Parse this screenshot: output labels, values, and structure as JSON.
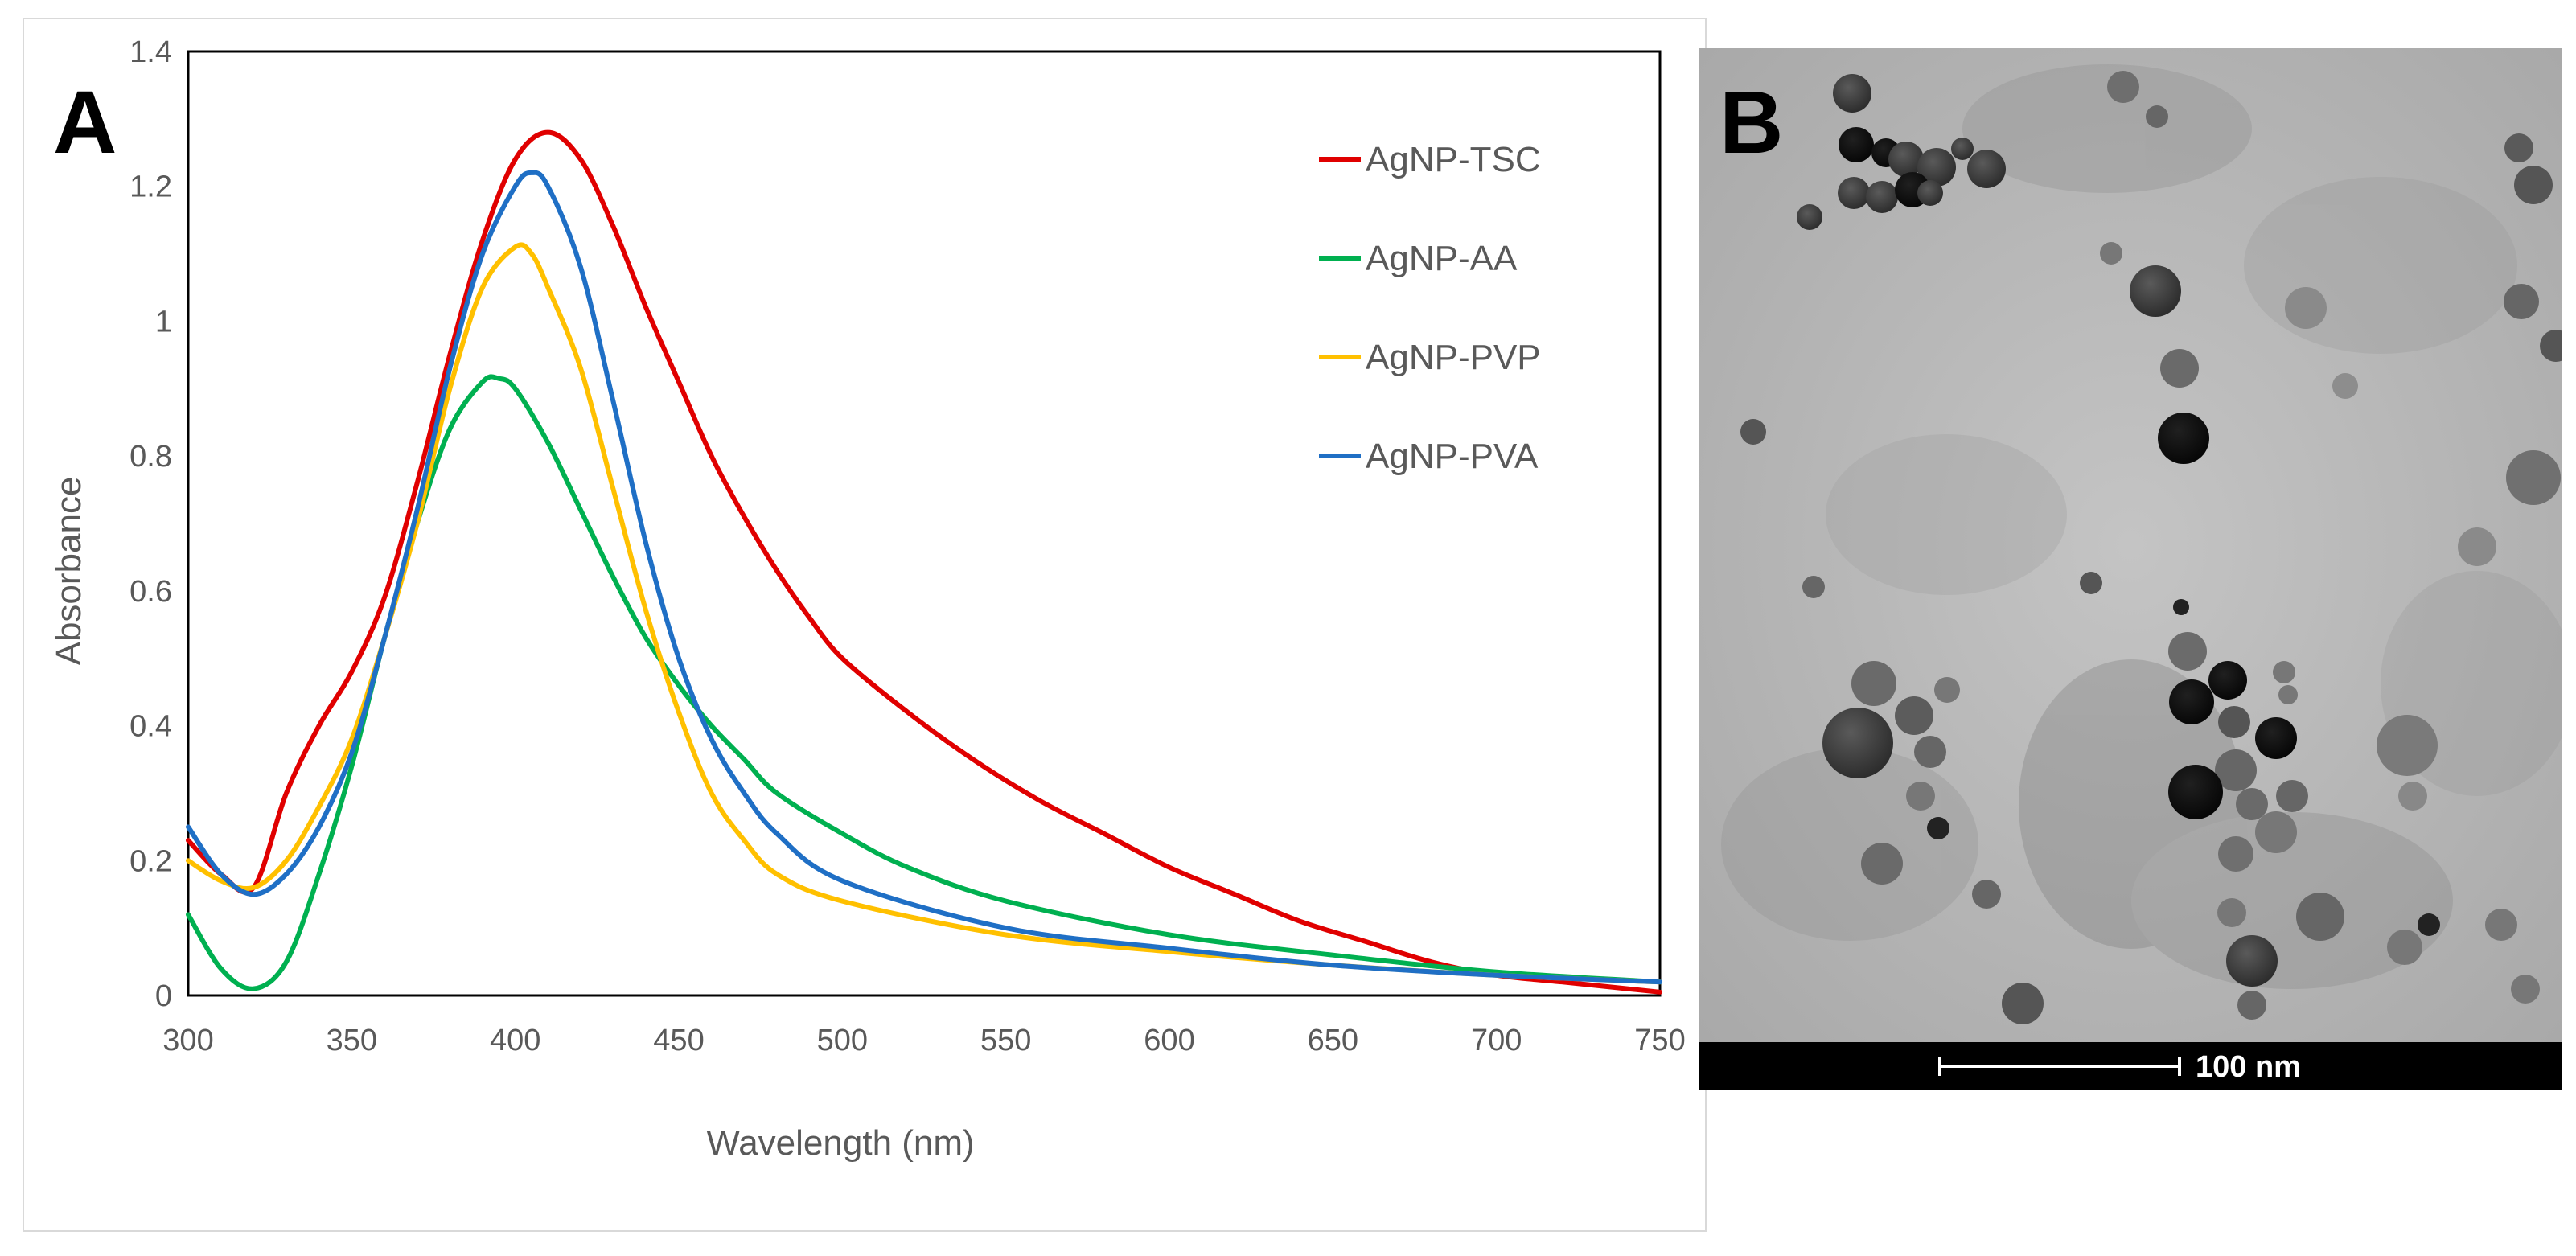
{
  "chart_data": {
    "type": "line",
    "panel_label": "A",
    "xlabel": "Wavelength (nm)",
    "ylabel": "Absorbance",
    "xlim": [
      300,
      750
    ],
    "ylim": [
      0,
      1.4
    ],
    "x_ticks": [
      300,
      350,
      400,
      450,
      500,
      550,
      600,
      650,
      700,
      750
    ],
    "y_ticks": [
      "0",
      "0.2",
      "0.4",
      "0.6",
      "0.8",
      "1",
      "1.2",
      "1.4"
    ],
    "y_tick_values": [
      0,
      0.2,
      0.4,
      0.6,
      0.8,
      1.0,
      1.2,
      1.4
    ],
    "legend_position": "top-right",
    "series": [
      {
        "name": "AgNP-TSC",
        "color": "#e00000",
        "x": [
          300,
          310,
          320,
          330,
          340,
          350,
          360,
          370,
          380,
          390,
          400,
          410,
          420,
          430,
          440,
          450,
          460,
          470,
          480,
          490,
          500,
          520,
          540,
          560,
          580,
          600,
          620,
          640,
          660,
          680,
          700,
          720,
          740,
          750
        ],
        "y": [
          0.23,
          0.18,
          0.16,
          0.3,
          0.4,
          0.48,
          0.59,
          0.76,
          0.95,
          1.12,
          1.24,
          1.28,
          1.24,
          1.14,
          1.02,
          0.91,
          0.8,
          0.71,
          0.63,
          0.56,
          0.5,
          0.42,
          0.35,
          0.29,
          0.24,
          0.19,
          0.15,
          0.11,
          0.08,
          0.05,
          0.03,
          0.02,
          0.01,
          0.005
        ]
      },
      {
        "name": "AgNP-AA",
        "color": "#00b050",
        "x": [
          300,
          310,
          320,
          330,
          340,
          350,
          360,
          370,
          380,
          390,
          395,
          400,
          410,
          420,
          430,
          440,
          450,
          460,
          470,
          480,
          500,
          520,
          550,
          600,
          650,
          700,
          750
        ],
        "y": [
          0.12,
          0.04,
          0.01,
          0.05,
          0.18,
          0.34,
          0.53,
          0.7,
          0.84,
          0.91,
          0.915,
          0.9,
          0.82,
          0.72,
          0.62,
          0.53,
          0.46,
          0.4,
          0.35,
          0.3,
          0.24,
          0.19,
          0.14,
          0.09,
          0.06,
          0.035,
          0.02
        ]
      },
      {
        "name": "AgNP-PVP",
        "color": "#ffc000",
        "x": [
          300,
          310,
          320,
          330,
          340,
          350,
          360,
          370,
          380,
          390,
          400,
          405,
          410,
          420,
          430,
          440,
          450,
          460,
          470,
          480,
          500,
          550,
          600,
          650,
          700,
          750
        ],
        "y": [
          0.2,
          0.17,
          0.16,
          0.2,
          0.28,
          0.38,
          0.53,
          0.7,
          0.9,
          1.05,
          1.11,
          1.1,
          1.05,
          0.93,
          0.75,
          0.57,
          0.42,
          0.3,
          0.23,
          0.18,
          0.14,
          0.09,
          0.065,
          0.045,
          0.03,
          0.02
        ]
      },
      {
        "name": "AgNP-PVA",
        "color": "#1f6fc5",
        "x": [
          300,
          310,
          320,
          330,
          340,
          350,
          360,
          370,
          380,
          390,
          400,
          405,
          410,
          420,
          430,
          440,
          450,
          460,
          470,
          480,
          500,
          550,
          600,
          650,
          700,
          750
        ],
        "y": [
          0.25,
          0.18,
          0.15,
          0.18,
          0.25,
          0.36,
          0.53,
          0.72,
          0.93,
          1.1,
          1.2,
          1.22,
          1.2,
          1.08,
          0.88,
          0.67,
          0.5,
          0.38,
          0.3,
          0.24,
          0.17,
          0.1,
          0.07,
          0.045,
          0.03,
          0.02
        ]
      }
    ]
  },
  "micrograph": {
    "panel_label": "B",
    "scale_bar_label": "100 nm"
  }
}
